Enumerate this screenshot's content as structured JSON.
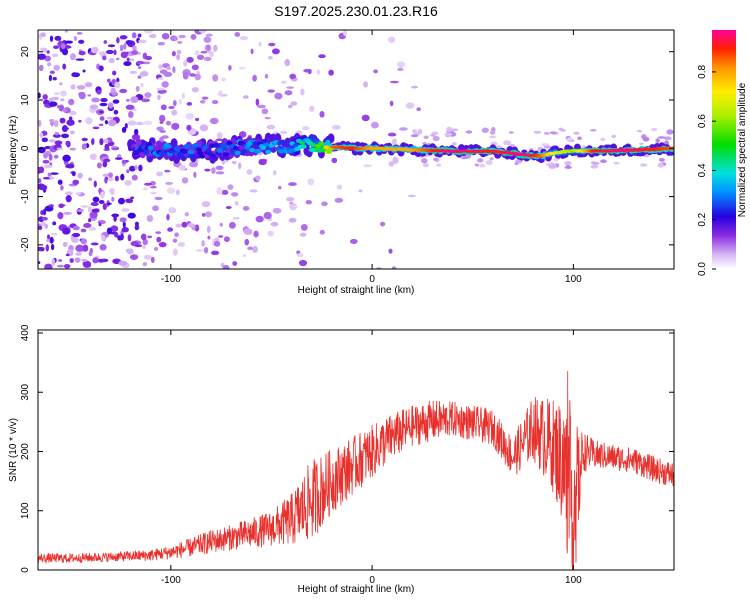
{
  "figure_title": "S197.2025.230.01.23.R16",
  "chart_data": [
    {
      "type": "heatmap",
      "title": "",
      "xlabel": "Height of straight line (km)",
      "ylabel": "Frequency (Hz)",
      "xlim": [
        -166,
        150
      ],
      "ylim": [
        -25,
        24.5
      ],
      "xticks": [
        -100,
        0,
        100
      ],
      "xtick_labels": [
        "-100",
        "0",
        "100"
      ],
      "yticks": [
        -20,
        -10,
        0,
        10,
        20
      ],
      "ytick_labels": [
        "-20",
        "-10",
        "0",
        "10",
        "20"
      ],
      "colorbar": {
        "label": "Normalized spectral amplitude",
        "range": [
          0,
          0.97
        ],
        "ticks": [
          0.0,
          0.2,
          0.4,
          0.6,
          0.8
        ],
        "tick_labels": [
          "0.0",
          "0.2",
          "0.4",
          "0.6",
          "0.8"
        ]
      },
      "ridge": {
        "description_points_x": [
          -118,
          -100,
          -80,
          -60,
          -40,
          -28,
          -20,
          -10,
          0,
          20,
          40,
          60,
          76,
          84,
          90,
          100,
          110,
          125,
          140,
          150
        ],
        "frequency_hz": [
          0,
          -0.5,
          -0.5,
          0.5,
          0.5,
          0.5,
          0.3,
          0,
          0,
          -0.3,
          -0.6,
          -0.6,
          -1.4,
          -1.6,
          -1.0,
          -0.5,
          -0.6,
          -0.4,
          -0.2,
          0.0
        ],
        "peak_amplitude": [
          0.3,
          0.35,
          0.3,
          0.35,
          0.4,
          0.6,
          0.85,
          0.9,
          0.8,
          0.8,
          0.97,
          0.9,
          0.97,
          0.85,
          0.7,
          0.6,
          0.9,
          0.95,
          0.9,
          0.85
        ]
      }
    },
    {
      "type": "line",
      "title": "",
      "xlabel": "Height of straight line (km)",
      "ylabel": "SNR (10 * v/v)",
      "xlim": [
        -166,
        150
      ],
      "ylim": [
        0,
        405
      ],
      "xticks": [
        -100,
        0,
        100
      ],
      "xtick_labels": [
        "-100",
        "0",
        "100"
      ],
      "yticks": [
        0,
        100,
        200,
        300,
        400
      ],
      "ytick_labels": [
        "0",
        "100",
        "200",
        "300",
        "400"
      ],
      "series": [
        {
          "name": "SNR",
          "color": "#e8302c",
          "x": [
            -166,
            -150,
            -130,
            -110,
            -100,
            -90,
            -80,
            -70,
            -60,
            -50,
            -40,
            -30,
            -20,
            -10,
            0,
            10,
            20,
            30,
            40,
            50,
            60,
            70,
            80,
            90,
            95,
            100,
            105,
            110,
            120,
            130,
            140,
            150
          ],
          "y": [
            20,
            20,
            22,
            25,
            30,
            38,
            48,
            55,
            62,
            70,
            85,
            118,
            150,
            175,
            200,
            225,
            243,
            252,
            255,
            248,
            240,
            190,
            240,
            210,
            180,
            100,
            200,
            195,
            190,
            185,
            170,
            160
          ],
          "noise": [
            8,
            8,
            8,
            10,
            12,
            16,
            20,
            22,
            26,
            30,
            45,
            70,
            55,
            50,
            45,
            40,
            35,
            35,
            30,
            30,
            30,
            35,
            55,
            80,
            110,
            150,
            35,
            25,
            22,
            22,
            22,
            22
          ]
        }
      ]
    }
  ]
}
